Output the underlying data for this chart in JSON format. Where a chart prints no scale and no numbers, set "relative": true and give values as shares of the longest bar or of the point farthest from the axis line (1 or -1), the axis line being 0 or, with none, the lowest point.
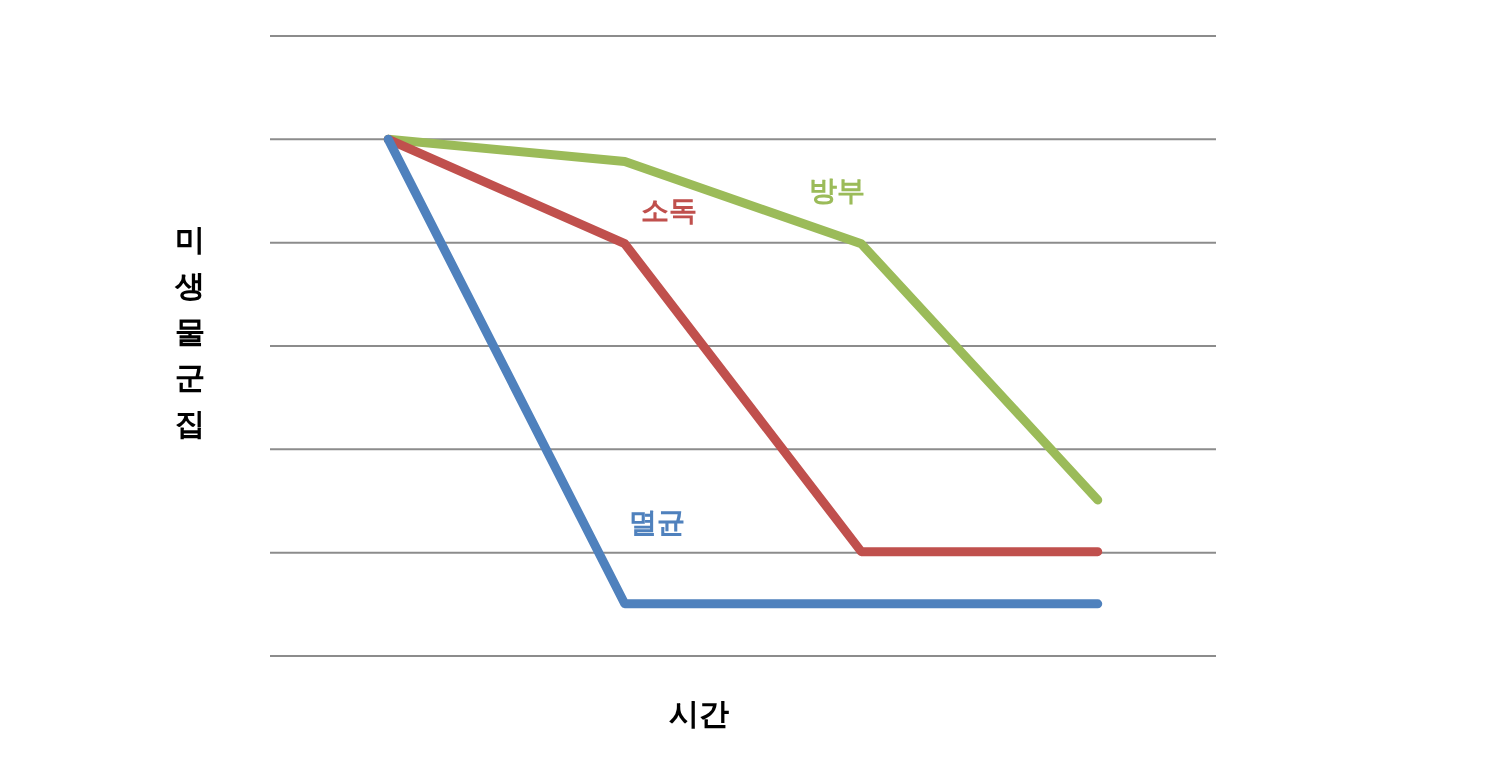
{
  "chart_data": {
    "type": "line",
    "xlabel": "시간",
    "ylabel": "미생물군집",
    "relative": true,
    "grid": "y",
    "marker": "none",
    "line_style": "solid",
    "categories": [
      null,
      null,
      null,
      null
    ],
    "series": [
      {
        "name": "방부",
        "color": "#9bbb59",
        "values": [
          1,
          0.957,
          0.798,
          0.302
        ]
      },
      {
        "name": "소독",
        "color": "#c0504d",
        "values": [
          1,
          0.798,
          0.202,
          0.202
        ]
      },
      {
        "name": "멸균",
        "color": "#4f81bd",
        "values": [
          1,
          0.101,
          0.101,
          0.101
        ]
      }
    ]
  }
}
